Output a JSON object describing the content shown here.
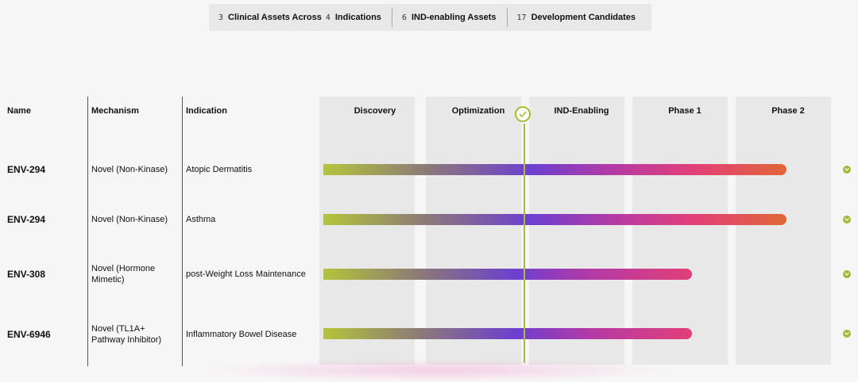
{
  "stats": [
    {
      "num": "3",
      "label": "Clinical Assets Across"
    },
    {
      "num": "4",
      "label": "Indications"
    },
    {
      "num": "6",
      "label": "IND-enabling Assets"
    },
    {
      "num": "17",
      "label": "Development Candidates"
    }
  ],
  "table": {
    "headers": {
      "name": "Name",
      "mechanism": "Mechanism",
      "indication": "Indication"
    },
    "phases": [
      "Discovery",
      "Optimization",
      "IND-Enabling",
      "Phase 1",
      "Phase 2"
    ],
    "rows": [
      {
        "name": "ENV-294",
        "mechanism": "Novel (Non-Kinase)",
        "indication": "Atopic Dermatitis",
        "progress_phase": "Phase 2"
      },
      {
        "name": "ENV-294",
        "mechanism": "Novel (Non-Kinase)",
        "indication": "Asthma",
        "progress_phase": "Phase 2"
      },
      {
        "name": "ENV-308",
        "mechanism": "Novel (Hormone Mimetic)",
        "indication": "post-Weight Loss Maintenance",
        "progress_phase": "Phase 1"
      },
      {
        "name": "ENV-6946",
        "mechanism": "Novel (TL1A+ Pathway Inhibitor)",
        "indication": "Inflammatory Bowel Disease",
        "progress_phase": "Phase 1"
      }
    ]
  },
  "colors": {
    "accent_green": "#a8bd33",
    "gradient": [
      "#b4c43a",
      "#6d3fd0",
      "#e23f78",
      "#e06636"
    ]
  },
  "icons": {
    "milestone": "check-circle-icon",
    "row_status": "chevron-down-icon"
  }
}
